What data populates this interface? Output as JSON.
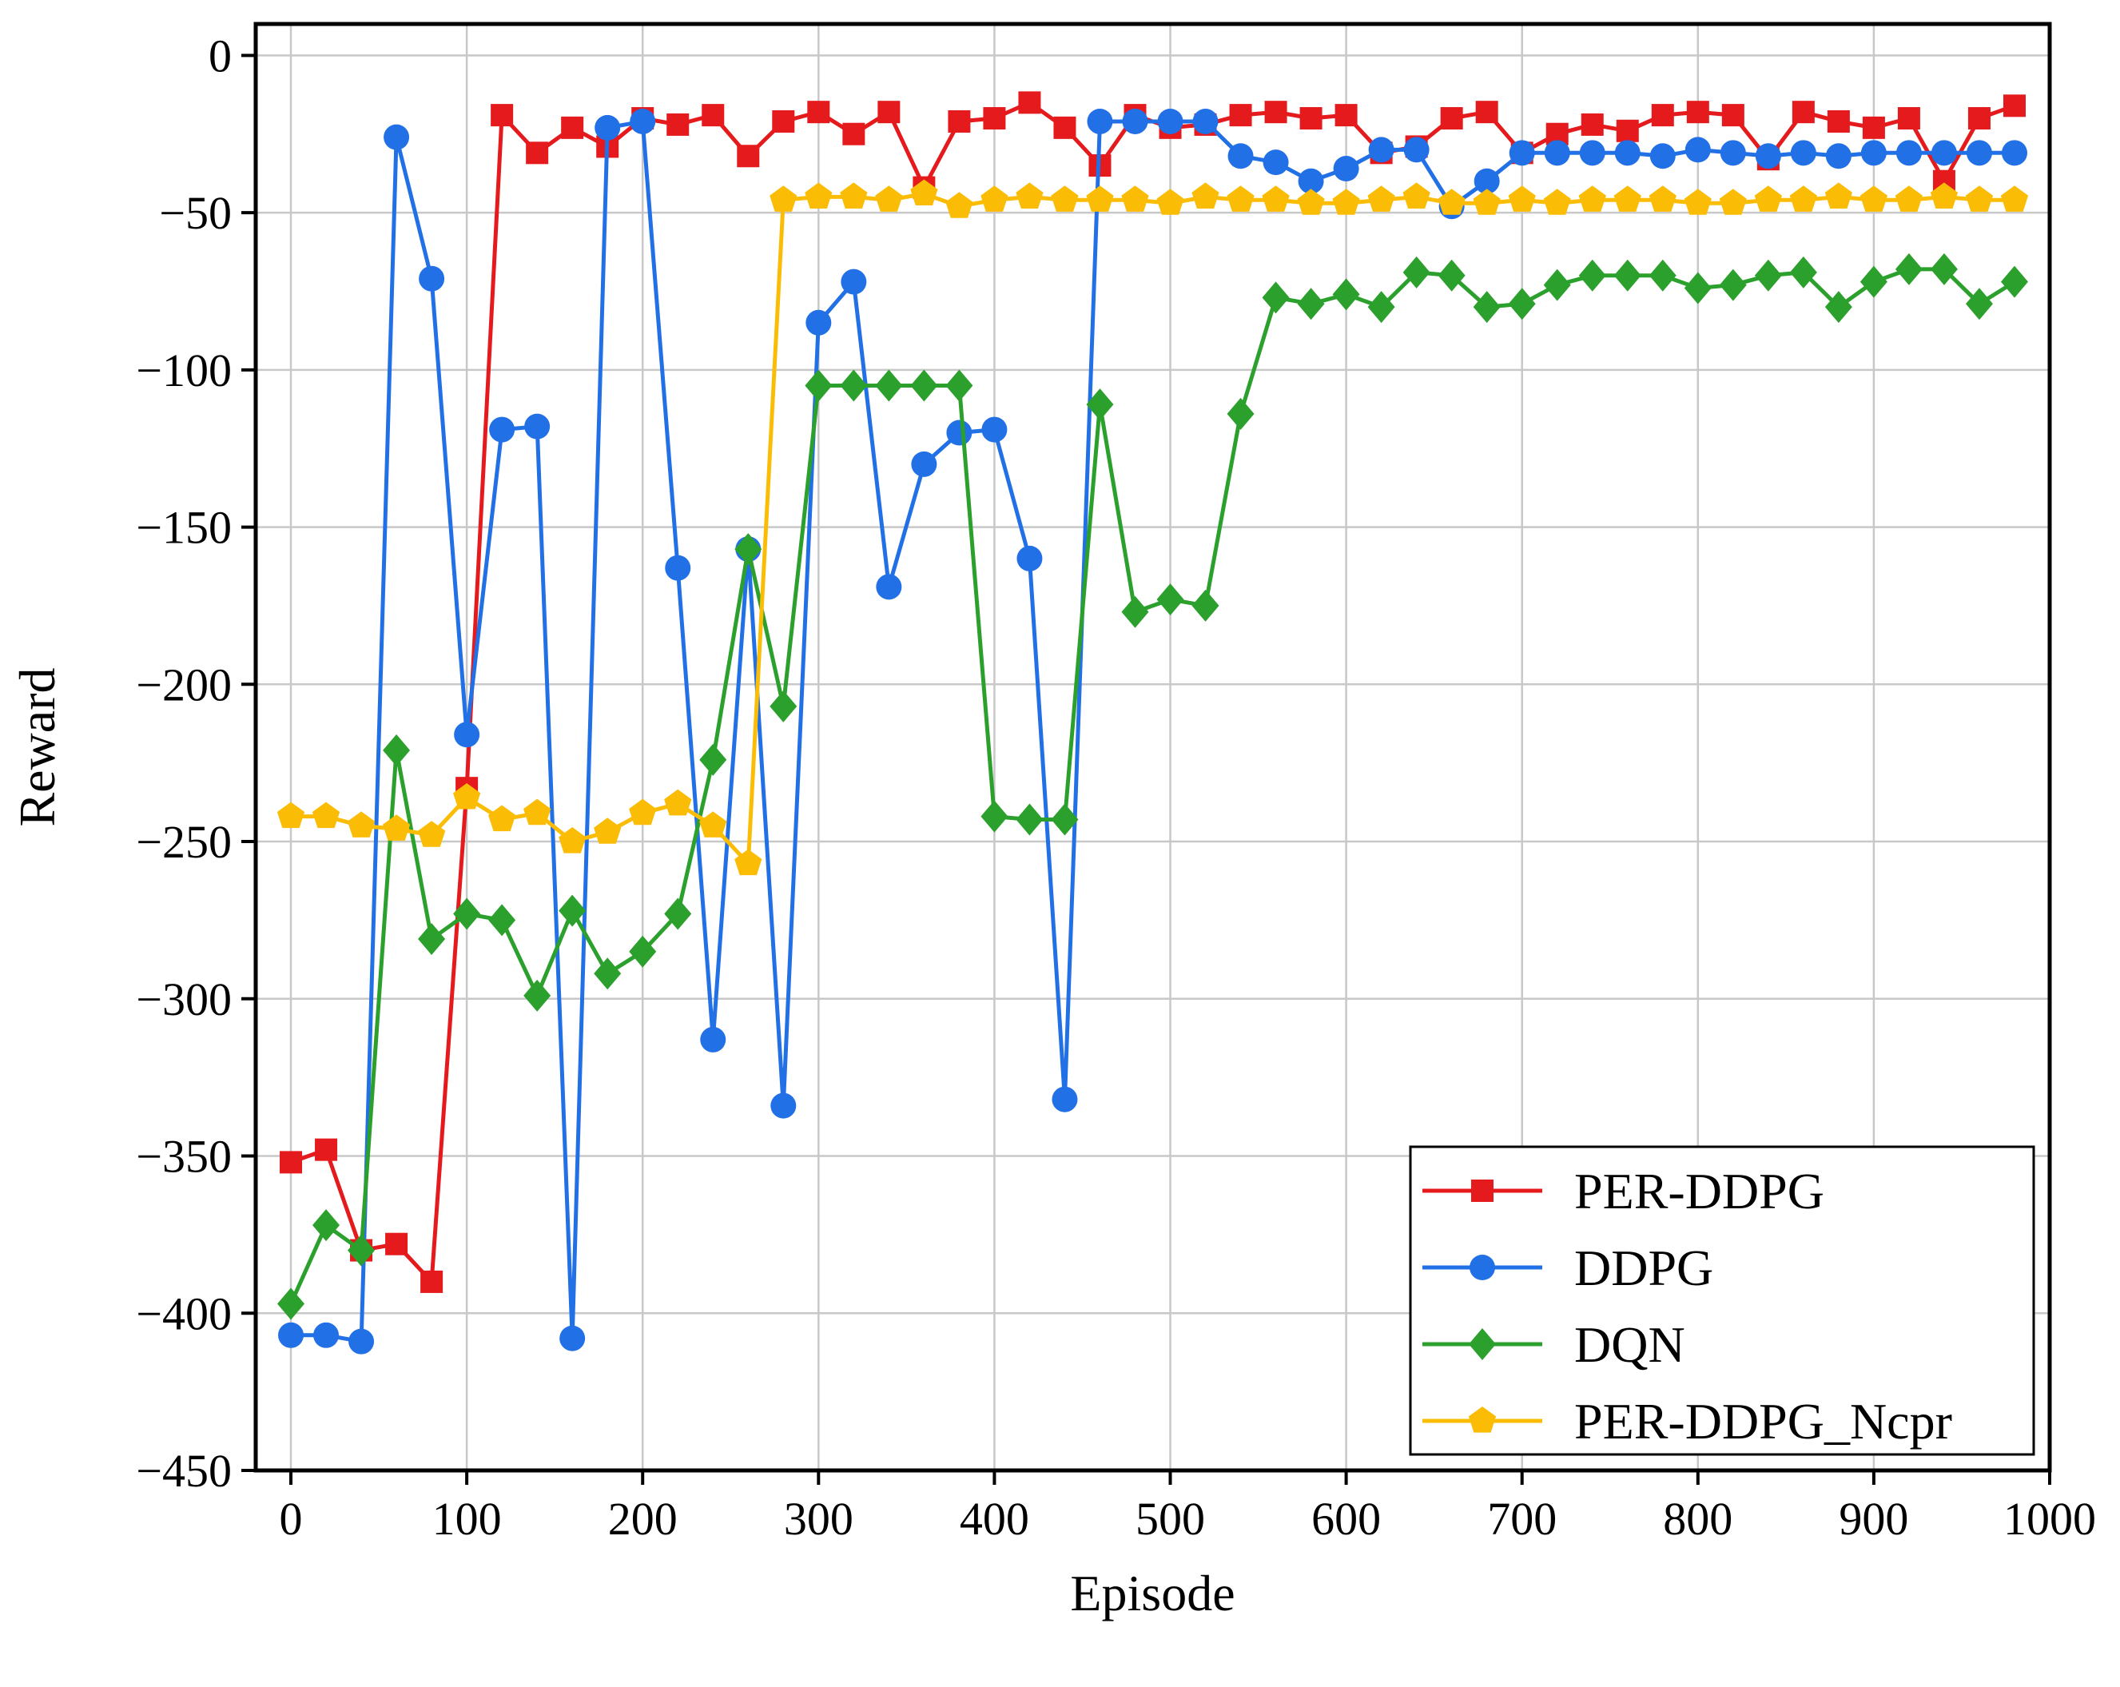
{
  "chart_data": {
    "type": "line",
    "title": "",
    "xlabel": "Episode",
    "ylabel": "Reward",
    "xlim": [
      -20,
      1000
    ],
    "ylim": [
      -450,
      10
    ],
    "xticks": [
      0,
      100,
      200,
      300,
      400,
      500,
      600,
      700,
      800,
      900,
      1000
    ],
    "yticks": [
      0,
      -50,
      -100,
      -150,
      -200,
      -250,
      -300,
      -350,
      -400,
      -450
    ],
    "xtick_labels": [
      "0",
      "100",
      "200",
      "300",
      "400",
      "500",
      "600",
      "700",
      "800",
      "900",
      "1000"
    ],
    "ytick_labels": [
      "0",
      "−50",
      "−100",
      "−150",
      "−200",
      "−250",
      "−300",
      "−350",
      "−400",
      "−450"
    ],
    "grid": true,
    "legend_position": "lower-right",
    "x": [
      0,
      20,
      40,
      60,
      80,
      100,
      120,
      140,
      160,
      180,
      200,
      220,
      240,
      260,
      280,
      300,
      320,
      340,
      360,
      380,
      400,
      420,
      440,
      460,
      480,
      500,
      520,
      540,
      560,
      580,
      600,
      620,
      640,
      660,
      680,
      700,
      720,
      740,
      760,
      780,
      800,
      820,
      840,
      860,
      880,
      900,
      920,
      940,
      960,
      980
    ],
    "series": [
      {
        "name": "PER-DDPG",
        "color": "#e41a1c",
        "marker": "square",
        "values": [
          -352,
          -348,
          -380,
          -378,
          -390,
          -233,
          -19,
          -31,
          -23,
          -29,
          -20,
          -22,
          -19,
          -32,
          -21,
          -18,
          -25,
          -18,
          -42,
          -21,
          -20,
          -15,
          -23,
          -35,
          -19,
          -23,
          -22,
          -19,
          -18,
          -20,
          -19,
          -31,
          -29,
          -20,
          -18,
          -31,
          -25,
          -22,
          -24,
          -19,
          -18,
          -19,
          -33,
          -18,
          -21,
          -23,
          -20,
          -40,
          -20,
          -16
        ]
      },
      {
        "name": "DDPG",
        "color": "#2270e6",
        "marker": "circle",
        "values": [
          -407,
          -407,
          -409,
          -26,
          -71,
          -216,
          -119,
          -118,
          -408,
          -23,
          -21,
          -163,
          -313,
          -157,
          -334,
          -85,
          -72,
          -169,
          -130,
          -120,
          -119,
          -160,
          -332,
          -21,
          -21,
          -21,
          -21,
          -32,
          -34,
          -40,
          -36,
          -30,
          -30,
          -48,
          -40,
          -31,
          -31,
          -31,
          -31,
          -32,
          -30,
          -31,
          -32,
          -31,
          -32,
          -31,
          -31,
          -31,
          -31,
          -31
        ]
      },
      {
        "name": "DQN",
        "color": "#2ca02c",
        "marker": "diamond",
        "values": [
          -397,
          -372,
          -380,
          -221,
          -281,
          -273,
          -275,
          -299,
          -272,
          -292,
          -285,
          -273,
          -224,
          -157,
          -207,
          -105,
          -105,
          -105,
          -105,
          -105,
          -242,
          -243,
          -243,
          -111,
          -177,
          -173,
          -175,
          -114,
          -77,
          -79,
          -76,
          -80,
          -69,
          -70,
          -80,
          -79,
          -73,
          -70,
          -70,
          -70,
          -74,
          -73,
          -70,
          -69,
          -80,
          -72,
          -68,
          -68,
          -79,
          -72
        ]
      },
      {
        "name": "PER-DDPG_Ncpr",
        "color": "#fbbc05",
        "marker": "pentagon",
        "values": [
          -242,
          -242,
          -245,
          -246,
          -248,
          -236,
          -243,
          -241,
          -250,
          -247,
          -241,
          -238,
          -245,
          -257,
          -46,
          -45,
          -45,
          -46,
          -44,
          -48,
          -46,
          -45,
          -46,
          -46,
          -46,
          -47,
          -45,
          -46,
          -46,
          -47,
          -47,
          -46,
          -45,
          -47,
          -47,
          -46,
          -47,
          -46,
          -46,
          -46,
          -47,
          -47,
          -46,
          -46,
          -45,
          -46,
          -46,
          -45,
          -46,
          -46
        ]
      }
    ]
  }
}
